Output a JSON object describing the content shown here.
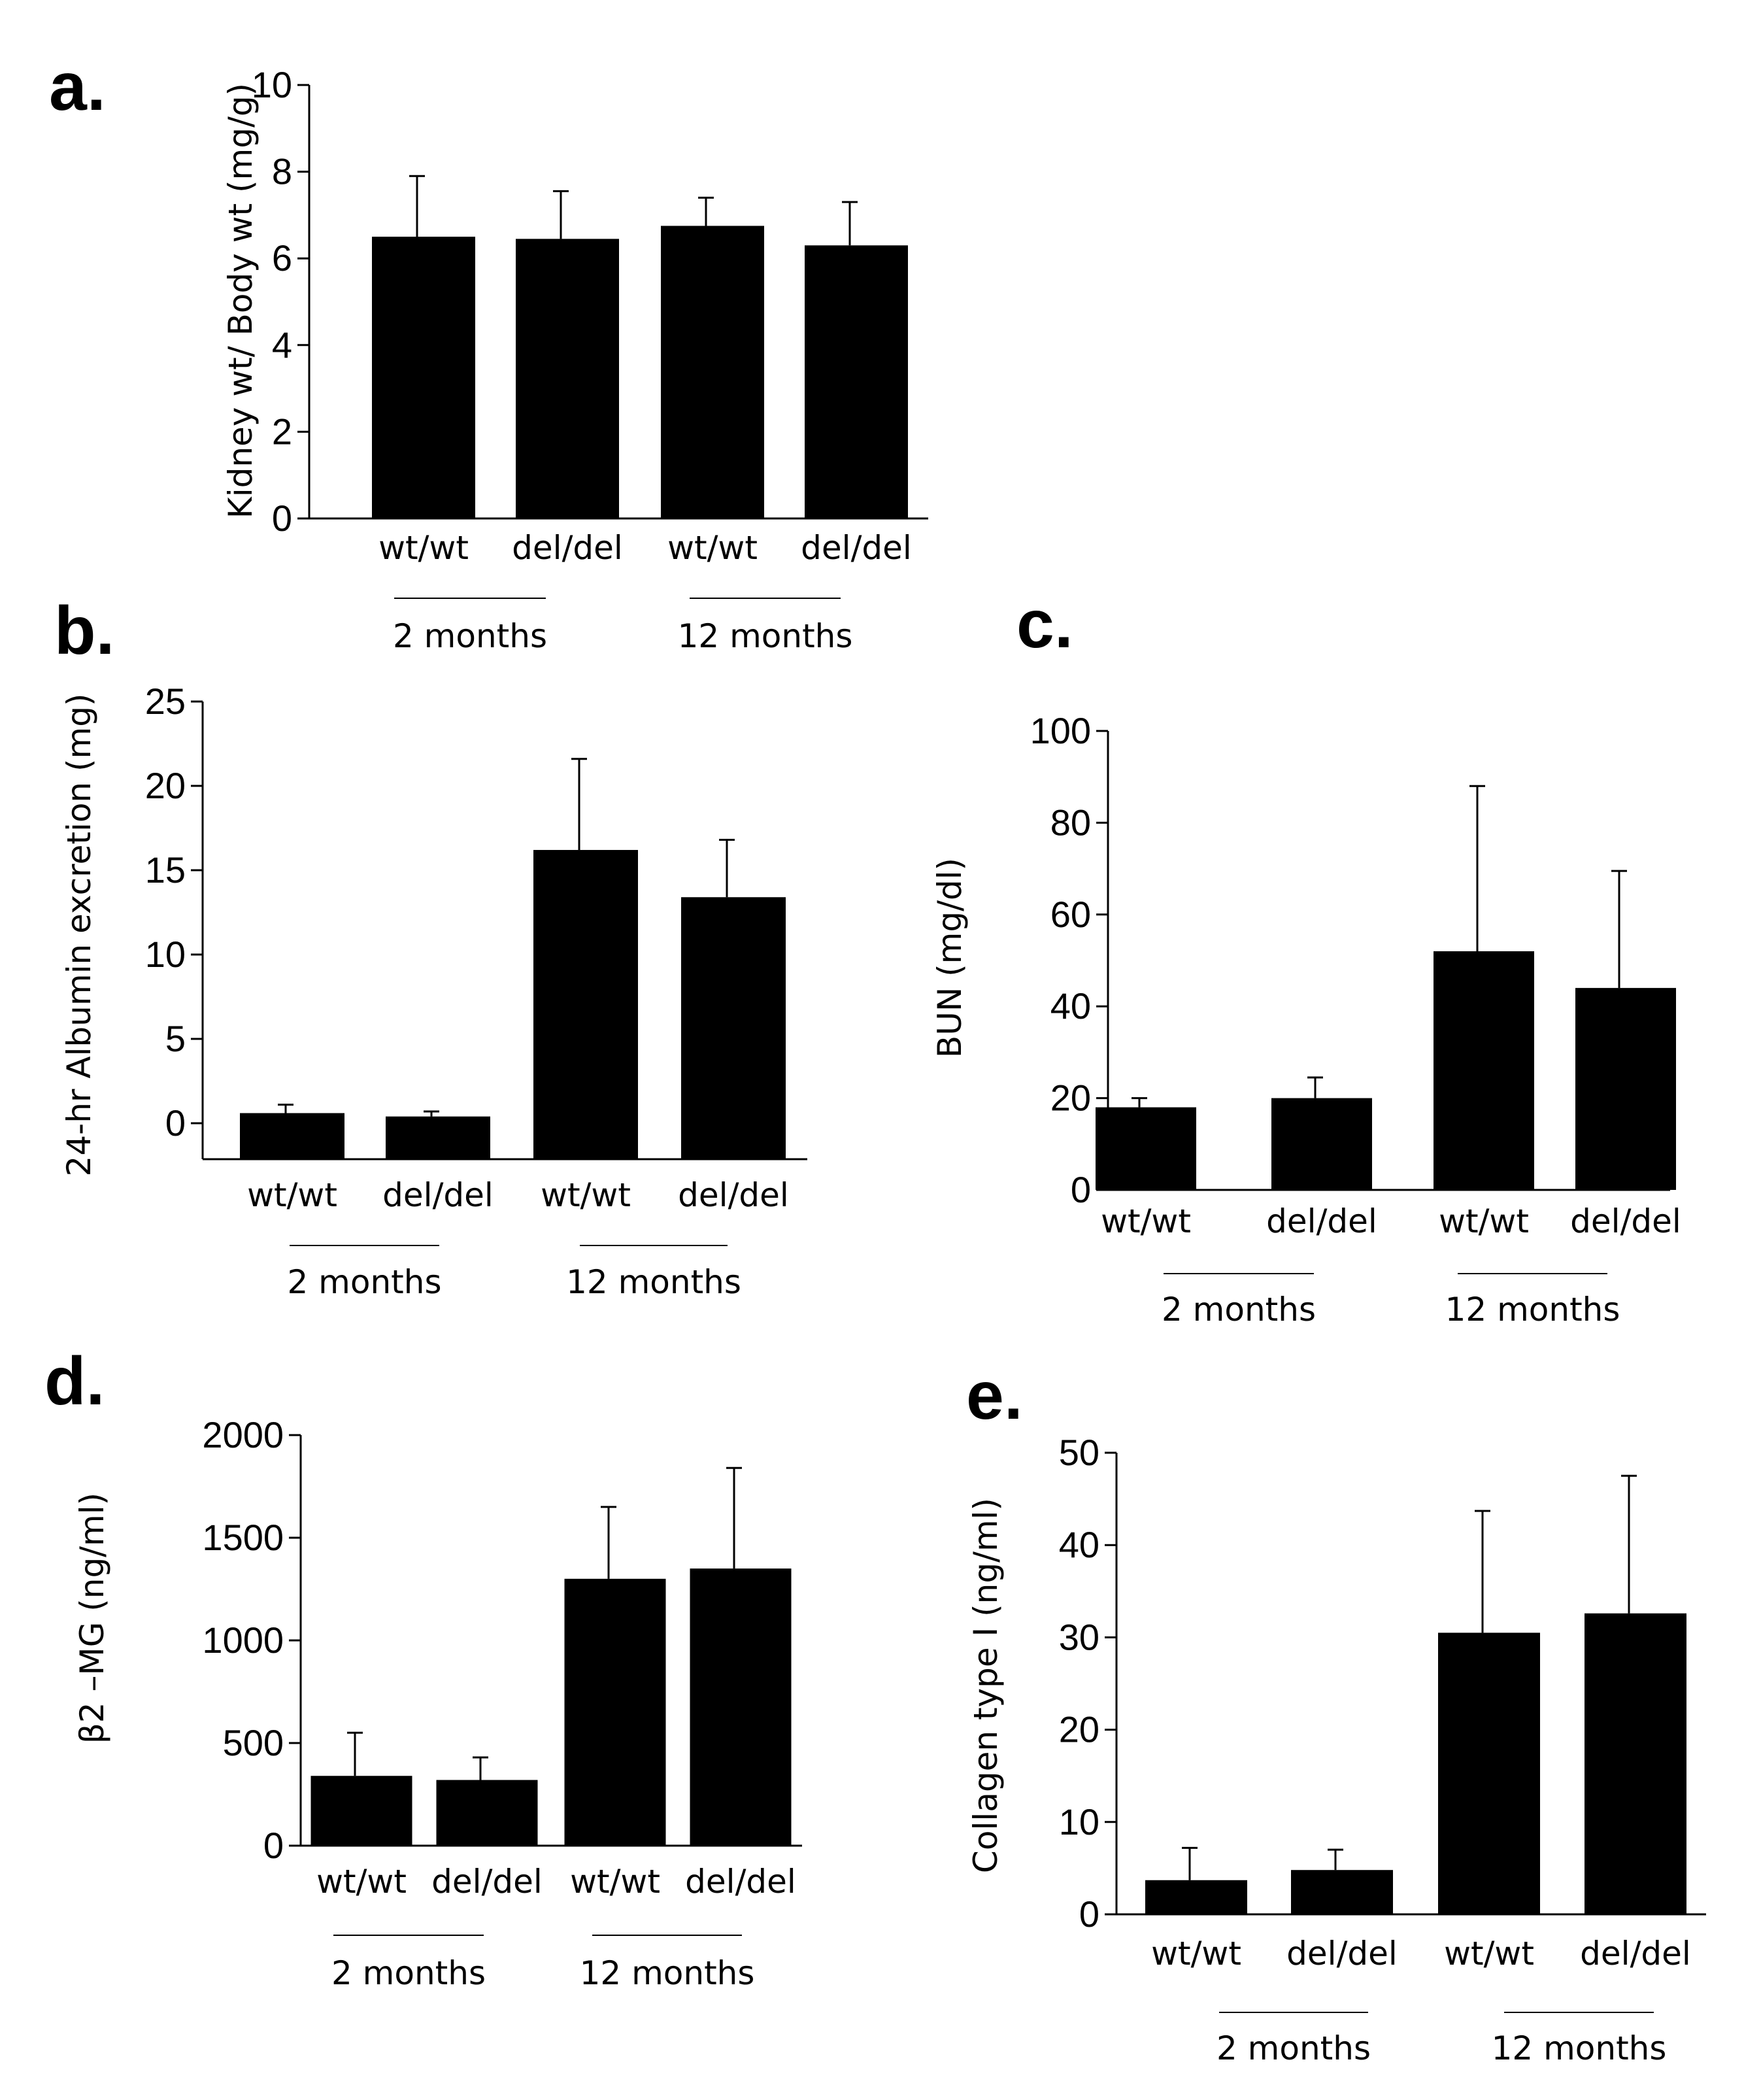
{
  "charts": [
    {
      "panel": "a.",
      "type": "bar",
      "ylabel": "Kidney wt/ Body wt (mg/g)",
      "ylim": [
        0,
        10
      ],
      "yticks": [
        "0",
        "2",
        "4",
        "6",
        "8",
        "10"
      ],
      "categories": [
        "wt/wt",
        "del/del",
        "wt/wt",
        "del/del"
      ],
      "values": [
        6.5,
        6.45,
        6.75,
        6.3
      ],
      "errors": [
        1.4,
        1.1,
        0.65,
        1.0
      ],
      "groups": [
        "2 months",
        "12 months"
      ]
    },
    {
      "panel": "b.",
      "type": "bar",
      "ylabel": "24-hr Albumin excretion (mg)",
      "ylim": [
        -2,
        25
      ],
      "yticks": [
        "0",
        "5",
        "10",
        "15",
        "20",
        "25"
      ],
      "categories": [
        "wt/wt",
        "del/del",
        "wt/wt",
        "del/del"
      ],
      "values": [
        0.6,
        0.4,
        16.2,
        13.4
      ],
      "errors": [
        0.5,
        0.3,
        5.4,
        3.4
      ],
      "groups": [
        "2 months",
        "12 months"
      ]
    },
    {
      "panel": "c.",
      "type": "bar",
      "ylabel": "BUN (mg/dl)",
      "ylim": [
        0,
        100
      ],
      "yticks": [
        "0",
        "20",
        "40",
        "60",
        "80",
        "100"
      ],
      "categories": [
        "wt/wt",
        "del/del",
        "wt/wt",
        "del/del"
      ],
      "values": [
        18,
        20,
        52,
        44
      ],
      "errors": [
        2,
        4.5,
        36,
        25.5
      ],
      "groups": [
        "2 months",
        "12 months"
      ]
    },
    {
      "panel": "d.",
      "type": "bar",
      "ylabel": "β2 –MG (ng/ml)",
      "ylim": [
        0,
        2000
      ],
      "yticks": [
        "0",
        "500",
        "1000",
        "1500",
        "2000"
      ],
      "categories": [
        "wt/wt",
        "del/del",
        "wt/wt",
        "del/del"
      ],
      "values": [
        340,
        320,
        1300,
        1350
      ],
      "errors": [
        210,
        110,
        350,
        490
      ],
      "groups": [
        "2 months",
        "12 months"
      ]
    },
    {
      "panel": "e.",
      "type": "bar",
      "ylabel": "Collagen type I (ng/ml)",
      "ylim": [
        0,
        50
      ],
      "yticks": [
        "0",
        "10",
        "20",
        "30",
        "40",
        "50"
      ],
      "categories": [
        "wt/wt",
        "del/del",
        "wt/wt",
        "del/del"
      ],
      "values": [
        3.7,
        4.8,
        30.5,
        32.6
      ],
      "errors": [
        3.5,
        2.2,
        13.2,
        14.9
      ],
      "groups": [
        "2 months",
        "12 months"
      ]
    }
  ]
}
